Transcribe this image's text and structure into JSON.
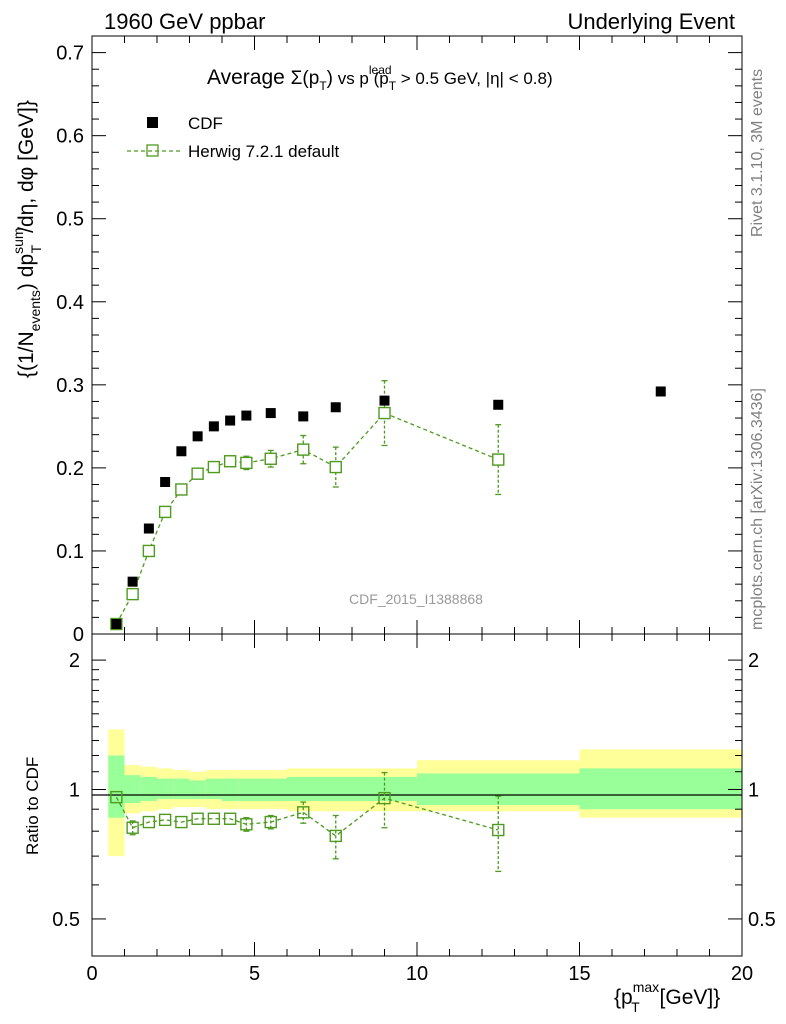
{
  "header": {
    "left": "1960 GeV ppbar",
    "right": "Underlying Event"
  },
  "side": {
    "rivet": "Rivet 3.1.10,  3M events",
    "mcplots": "mcplots.cern.ch [arXiv:1306.3436]"
  },
  "watermark": "CDF_2015_I1388868",
  "plot_title": {
    "prefix": "Average ",
    "sigma": "Σ(p",
    "sub_T": "T",
    "close": ")",
    "vs": " vs p",
    "sup_lead": "lead",
    "cut": "(p",
    "cut2": " > 0.5 GeV, |η| < 0.8)"
  },
  "ylabel_main": "{(1/N",
  "ylabel_main_sub": "events",
  "ylabel_main_rest": ") dp",
  "ylabel_main_sup": "sum",
  "ylabel_main_tail": "/dη, dφ [GeV]}",
  "ylabel_ratio": "Ratio to CDF",
  "xlabel": "{p",
  "xlabel_sup": "max",
  "xlabel_sub": "T",
  "xlabel_tail": " [GeV]}",
  "legend": {
    "data_label": "CDF",
    "mc_label": "Herwig 7.2.1 default"
  },
  "colors": {
    "data": "#000000",
    "mc": "#4d9a1e",
    "band_inner": "#99ff99",
    "band_outer": "#ffff99",
    "side_text": "#808080"
  },
  "chart_data": [
    {
      "type": "scatter",
      "panel": "main",
      "xlim": [
        0,
        20
      ],
      "ylim": [
        0,
        0.72
      ],
      "yticks": [
        0,
        0.1,
        0.2,
        0.3,
        0.4,
        0.5,
        0.6,
        0.7
      ],
      "ytick_labels": [
        "0",
        "0.1",
        "0.2",
        "0.3",
        "0.4",
        "0.5",
        "0.6",
        "0.7"
      ],
      "series": [
        {
          "name": "CDF",
          "x": [
            0.75,
            1.25,
            1.75,
            2.25,
            2.75,
            3.25,
            3.75,
            4.25,
            4.75,
            5.5,
            6.5,
            7.5,
            9.0,
            12.5,
            17.5
          ],
          "y": [
            0.012,
            0.063,
            0.127,
            0.183,
            0.22,
            0.238,
            0.25,
            0.257,
            0.263,
            0.266,
            0.262,
            0.273,
            0.281,
            0.276,
            0.292
          ]
        },
        {
          "name": "Herwig 7.2.1 default",
          "x": [
            0.75,
            1.25,
            1.75,
            2.25,
            2.75,
            3.25,
            3.75,
            4.25,
            4.75,
            5.5,
            6.5,
            7.5,
            9.0,
            12.5
          ],
          "y": [
            0.012,
            0.048,
            0.1,
            0.147,
            0.174,
            0.193,
            0.201,
            0.208,
            0.206,
            0.211,
            0.222,
            0.201,
            0.266,
            0.21
          ],
          "yerr": [
            0.001,
            0.003,
            0.003,
            0.004,
            0.004,
            0.005,
            0.005,
            0.006,
            0.008,
            0.01,
            0.017,
            0.024,
            0.039,
            0.042
          ]
        }
      ]
    },
    {
      "type": "scatter",
      "panel": "ratio",
      "xlim": [
        0,
        20
      ],
      "ylim": [
        0.41,
        2.3
      ],
      "yscale": "log",
      "yticks": [
        0.5,
        1,
        2
      ],
      "ytick_labels": [
        "0.5",
        "1",
        "2"
      ],
      "xticks": [
        0,
        5,
        10,
        15,
        20
      ],
      "xtick_labels": [
        "0",
        "5",
        "10",
        "15",
        "20"
      ],
      "bands": {
        "edges": [
          0.5,
          1.0,
          1.5,
          2.0,
          2.5,
          3.0,
          3.5,
          4.0,
          4.5,
          5.0,
          6.0,
          7.0,
          8.0,
          10.0,
          15.0,
          20.0
        ],
        "inner_up": [
          1.2,
          1.08,
          1.07,
          1.06,
          1.06,
          1.05,
          1.06,
          1.06,
          1.06,
          1.06,
          1.07,
          1.07,
          1.07,
          1.09,
          1.12
        ],
        "inner_dn": [
          0.86,
          0.93,
          0.94,
          0.95,
          0.95,
          0.95,
          0.95,
          0.94,
          0.94,
          0.94,
          0.94,
          0.94,
          0.94,
          0.92,
          0.9
        ],
        "outer_up": [
          1.38,
          1.14,
          1.13,
          1.12,
          1.11,
          1.1,
          1.11,
          1.11,
          1.11,
          1.11,
          1.12,
          1.12,
          1.12,
          1.17,
          1.24
        ],
        "outer_dn": [
          0.7,
          0.88,
          0.89,
          0.9,
          0.91,
          0.91,
          0.9,
          0.9,
          0.9,
          0.9,
          0.89,
          0.89,
          0.89,
          0.89,
          0.86
        ]
      },
      "series": [
        {
          "name": "Herwig 7.2.1 default",
          "x": [
            0.75,
            1.25,
            1.75,
            2.25,
            2.75,
            3.25,
            3.75,
            4.25,
            4.75,
            5.5,
            6.5,
            7.5,
            9.0,
            12.5
          ],
          "y": [
            0.96,
            0.815,
            0.84,
            0.85,
            0.84,
            0.855,
            0.855,
            0.855,
            0.83,
            0.84,
            0.885,
            0.78,
            0.955,
            0.805
          ],
          "yerr": [
            0.02,
            0.03,
            0.02,
            0.02,
            0.02,
            0.02,
            0.02,
            0.02,
            0.03,
            0.03,
            0.05,
            0.09,
            0.14,
            0.16
          ]
        }
      ]
    }
  ]
}
